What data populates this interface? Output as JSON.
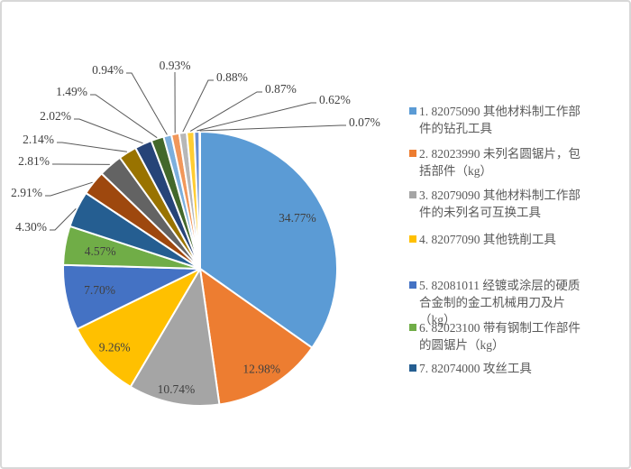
{
  "chart": {
    "background": "#FFFFFF",
    "frame_border_color": "#D8D8D8",
    "label_text_color": "#404040",
    "leader_line_color": "#595959",
    "slice_gap_color": "#FFFFFF"
  },
  "chart_data": {
    "type": "pie",
    "title": "",
    "legend_position": "right",
    "direction": "clockwise",
    "start_angle_deg": 0,
    "slices": [
      {
        "rank": 1,
        "legend_label": "1. 82075090 其他材料制工作部件的钻孔工具",
        "value": 34.77,
        "display": "34.77%",
        "color": "#5B9BD5",
        "label_placement": "inside"
      },
      {
        "rank": 2,
        "legend_label": "2. 82023990 未列名圆锯片，包括部件（kg）",
        "value": 12.98,
        "display": "12.98%",
        "color": "#ED7D31",
        "label_placement": "inside"
      },
      {
        "rank": 3,
        "legend_label": "3. 82079090 其他材料制工作部件的未列名可互换工具",
        "value": 10.74,
        "display": "10.74%",
        "color": "#A5A5A5",
        "label_placement": "inside"
      },
      {
        "rank": 4,
        "legend_label": "4. 82077090 其他铣削工具",
        "value": 9.26,
        "display": "9.26%",
        "color": "#FFC000",
        "label_placement": "inside"
      },
      {
        "rank": 5,
        "legend_label": "5. 82081011 经镀或涂层的硬质合金制的金工机械用刀及片（kg）",
        "value": 7.7,
        "display": "7.70%",
        "color": "#4472C4",
        "label_placement": "inside"
      },
      {
        "rank": 6,
        "legend_label": "6. 82023100 带有钢制工作部件的圆锯片（kg）",
        "value": 4.57,
        "display": "4.57%",
        "color": "#70AD47",
        "label_placement": "inside"
      },
      {
        "rank": 7,
        "legend_label": "7. 82074000 攻丝工具",
        "value": 4.3,
        "display": "4.30%",
        "color": "#255E91",
        "label_placement": "outside"
      },
      {
        "rank": 8,
        "legend_label": "",
        "value": 2.91,
        "display": "2.91%",
        "color": "#9E480E",
        "label_placement": "outside"
      },
      {
        "rank": 9,
        "legend_label": "",
        "value": 2.81,
        "display": "2.81%",
        "color": "#636363",
        "label_placement": "outside"
      },
      {
        "rank": 10,
        "legend_label": "",
        "value": 2.14,
        "display": "2.14%",
        "color": "#997300",
        "label_placement": "outside"
      },
      {
        "rank": 11,
        "legend_label": "",
        "value": 2.02,
        "display": "2.02%",
        "color": "#264478",
        "label_placement": "outside"
      },
      {
        "rank": 12,
        "legend_label": "",
        "value": 1.49,
        "display": "1.49%",
        "color": "#43682B",
        "label_placement": "outside"
      },
      {
        "rank": 13,
        "legend_label": "",
        "value": 0.94,
        "display": "0.94%",
        "color": "#7CAFDD",
        "label_placement": "outside"
      },
      {
        "rank": 14,
        "legend_label": "",
        "value": 0.93,
        "display": "0.93%",
        "color": "#F1975A",
        "label_placement": "outside"
      },
      {
        "rank": 15,
        "legend_label": "",
        "value": 0.88,
        "display": "0.88%",
        "color": "#B7B7B7",
        "label_placement": "outside"
      },
      {
        "rank": 16,
        "legend_label": "",
        "value": 0.87,
        "display": "0.87%",
        "color": "#FFCD33",
        "label_placement": "outside"
      },
      {
        "rank": 17,
        "legend_label": "",
        "value": 0.62,
        "display": "0.62%",
        "color": "#698ED0",
        "label_placement": "outside"
      },
      {
        "rank": 18,
        "legend_label": "",
        "value": 0.07,
        "display": "0.07%",
        "color": "#8CC168",
        "label_placement": "outside"
      }
    ]
  },
  "legend": {
    "items": [
      {
        "marker_color": "#5B9BD5",
        "lines": [
          "1. 82075090 其他材料制工作部",
          "件的钻孔工具"
        ]
      },
      {
        "marker_color": "#ED7D31",
        "lines": [
          "2. 82023990 未列名圆锯片，包",
          "括部件（kg）"
        ]
      },
      {
        "marker_color": "#A5A5A5",
        "lines": [
          "3. 82079090 其他材料制工作部",
          "件的未列名可互换工具"
        ]
      },
      {
        "marker_color": "#FFC000",
        "lines": [
          "4. 82077090 其他铣削工具"
        ]
      },
      {
        "marker_color": "#4472C4",
        "lines": [
          "5. 82081011 经镀或涂层的硬质",
          "合金制的金工机械用刀及片",
          "（kg）"
        ]
      },
      {
        "marker_color": "#70AD47",
        "lines": [
          "6. 82023100 带有钢制工作部件",
          "的圆锯片（kg）"
        ]
      },
      {
        "marker_color": "#255E91",
        "lines": [
          "7. 82074000 攻丝工具"
        ]
      }
    ]
  }
}
